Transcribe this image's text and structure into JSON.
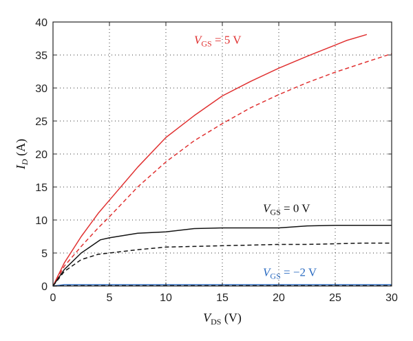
{
  "chart_data": {
    "type": "line",
    "xlabel": {
      "main": "V",
      "sub": "DS",
      "unit": " (V)"
    },
    "ylabel": {
      "main": "I",
      "sub": "D",
      "unit": " (A)"
    },
    "xlim": [
      0,
      30
    ],
    "ylim": [
      0,
      40
    ],
    "xticks": [
      0,
      5,
      10,
      15,
      20,
      25,
      30
    ],
    "yticks": [
      0,
      5,
      10,
      15,
      20,
      25,
      30,
      35,
      40
    ],
    "grid": true,
    "series": [
      {
        "group": "VGS=5V",
        "style": "solid",
        "color": "#e03030",
        "x": [
          0,
          1,
          2.5,
          4,
          5,
          7.5,
          10,
          12.5,
          15,
          17.5,
          20,
          22.5,
          25,
          26,
          27.8
        ],
        "y": [
          0,
          3.5,
          7.5,
          11,
          13,
          18,
          22.5,
          25.8,
          28.8,
          31,
          33,
          34.8,
          36.5,
          37.2,
          38.1
        ]
      },
      {
        "group": "VGS=5V",
        "style": "dashed",
        "color": "#e03030",
        "x": [
          0,
          1,
          2.5,
          4,
          5,
          7.5,
          10,
          12.5,
          15,
          17.5,
          20,
          22.5,
          25,
          27.5,
          30
        ],
        "y": [
          0,
          3,
          6,
          8.8,
          10.5,
          15,
          18.8,
          22,
          24.6,
          27,
          29,
          30.8,
          32.4,
          33.8,
          35.2
        ]
      },
      {
        "group": "VGS=0V",
        "style": "solid",
        "color": "#111111",
        "x": [
          0,
          1,
          2.5,
          4.2,
          5,
          7.5,
          10,
          12.5,
          15,
          17.5,
          20,
          22.5,
          25,
          27.5,
          30
        ],
        "y": [
          0,
          2.5,
          5,
          7,
          7.3,
          8,
          8.2,
          8.7,
          8.8,
          8.8,
          8.8,
          9.1,
          9.2,
          9.2,
          9.2
        ]
      },
      {
        "group": "VGS=0V",
        "style": "dashed",
        "color": "#111111",
        "x": [
          0,
          1,
          2.5,
          4,
          5,
          7.5,
          10,
          12.5,
          15,
          17.5,
          20,
          22.5,
          25,
          27.5,
          30
        ],
        "y": [
          0,
          2.2,
          4,
          4.8,
          5,
          5.5,
          5.9,
          6,
          6.1,
          6.2,
          6.3,
          6.3,
          6.4,
          6.5,
          6.5
        ]
      },
      {
        "group": "VGS=-2V",
        "style": "solid",
        "color": "#2a6bc2",
        "x": [
          0,
          1,
          5,
          30
        ],
        "y": [
          0,
          0.2,
          0.2,
          0.2
        ]
      },
      {
        "group": "VGS=-2V",
        "style": "dashed",
        "color": "#111111",
        "x": [
          0,
          1,
          5,
          30
        ],
        "y": [
          0,
          0.05,
          0.05,
          0.05
        ]
      }
    ],
    "annotations": [
      {
        "id": "label-vgs-5v",
        "pre": "V",
        "sub": "GS",
        "post": " = 5 V",
        "color": "#e03030",
        "x": 12.5,
        "y": 36.7
      },
      {
        "id": "label-vgs-0v",
        "pre": "V",
        "sub": "GS",
        "post": " = 0 V",
        "color": "#111111",
        "x": 18.6,
        "y": 11.2
      },
      {
        "id": "label-vgs-neg2v",
        "pre": "V",
        "sub": "GS",
        "post": " = −2 V",
        "color": "#2a6bc2",
        "x": 18.6,
        "y": 1.5
      }
    ]
  }
}
